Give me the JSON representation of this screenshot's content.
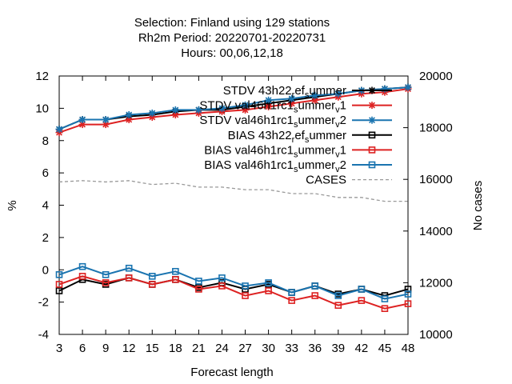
{
  "chart_data": {
    "type": "line",
    "title_lines": [
      "Selection: Finland using   129 stations",
      "Rh2m   Period: 20220701-20220731",
      "Hours:  00,06,12,18"
    ],
    "xlabel": "Forecast length",
    "ylabel": "%",
    "y2label": "No cases",
    "x": [
      3,
      6,
      9,
      12,
      15,
      18,
      21,
      24,
      27,
      30,
      33,
      36,
      39,
      42,
      45,
      48
    ],
    "xlim": [
      3,
      48
    ],
    "ylim": [
      -4,
      12
    ],
    "y2lim": [
      10000,
      20000
    ],
    "xticks": [
      "3",
      "6",
      "9",
      "12",
      "15",
      "18",
      "21",
      "24",
      "27",
      "30",
      "33",
      "36",
      "39",
      "42",
      "45",
      "48"
    ],
    "yticks": [
      "-4",
      "-2",
      "0",
      "2",
      "4",
      "6",
      "8",
      "10",
      "12"
    ],
    "y2ticks": [
      "10000",
      "12000",
      "14000",
      "16000",
      "18000",
      "20000"
    ],
    "legend_position": "top-right",
    "grid": false,
    "series": [
      {
        "name": "STDV 43h22_ref_summer",
        "label_main": "STDV 43h22",
        "label_sub": [
          "r",
          "ef",
          "s",
          "ummer"
        ],
        "axis": "y1",
        "marker": "asterisk",
        "color": "#000000",
        "dash": "solid",
        "values": [
          8.7,
          9.3,
          9.3,
          9.5,
          9.6,
          9.8,
          9.9,
          9.9,
          10.1,
          10.3,
          10.5,
          10.7,
          10.9,
          11.1,
          11.2,
          11.3
        ]
      },
      {
        "name": "STDV val46h1rc1_summer_v1",
        "label_main": "STDV val46h1rc1",
        "label_sub": [
          "s",
          "ummer",
          "v",
          "1"
        ],
        "axis": "y1",
        "marker": "asterisk",
        "color": "#dd2222",
        "dash": "solid",
        "values": [
          8.5,
          9.0,
          9.0,
          9.3,
          9.45,
          9.6,
          9.7,
          9.8,
          9.9,
          10.1,
          10.3,
          10.5,
          10.7,
          10.9,
          11.0,
          11.2
        ]
      },
      {
        "name": "STDV val46h1rc1_summer_v2",
        "label_main": "STDV val46h1rc1",
        "label_sub": [
          "s",
          "ummer",
          "v",
          "2"
        ],
        "axis": "y1",
        "marker": "asterisk",
        "color": "#1a74b0",
        "dash": "solid",
        "values": [
          8.7,
          9.3,
          9.3,
          9.6,
          9.7,
          9.9,
          9.9,
          10.0,
          10.2,
          10.5,
          10.6,
          10.8,
          10.9,
          11.1,
          11.2,
          11.3
        ]
      },
      {
        "name": "BIAS 43h22_ref_summer",
        "label_main": "BIAS 43h22",
        "label_sub": [
          "r",
          "ef",
          "s",
          "ummer"
        ],
        "axis": "y1",
        "marker": "square",
        "color": "#000000",
        "dash": "solid",
        "values": [
          -1.3,
          -0.6,
          -0.9,
          -0.5,
          -0.9,
          -0.6,
          -1.1,
          -0.8,
          -1.2,
          -0.9,
          -1.4,
          -1.0,
          -1.5,
          -1.2,
          -1.6,
          -1.2
        ]
      },
      {
        "name": "BIAS val46h1rc1_summer_v1",
        "label_main": "BIAS val46h1rc1",
        "label_sub": [
          "s",
          "ummer",
          "v",
          "1"
        ],
        "axis": "y1",
        "marker": "square",
        "color": "#dd2222",
        "dash": "solid",
        "values": [
          -0.9,
          -0.4,
          -0.8,
          -0.5,
          -0.9,
          -0.6,
          -1.2,
          -1.0,
          -1.6,
          -1.3,
          -1.9,
          -1.6,
          -2.2,
          -1.9,
          -2.4,
          -2.1
        ]
      },
      {
        "name": "BIAS val46h1rc1_summer_v2",
        "label_main": "BIAS val46h1rc1",
        "label_sub": [
          "s",
          "ummer",
          "v",
          "2"
        ],
        "axis": "y1",
        "marker": "square",
        "color": "#1a74b0",
        "dash": "solid",
        "values": [
          -0.3,
          0.2,
          -0.3,
          0.1,
          -0.4,
          -0.1,
          -0.7,
          -0.5,
          -1.0,
          -0.8,
          -1.4,
          -1.0,
          -1.6,
          -1.2,
          -1.8,
          -1.5
        ]
      },
      {
        "name": "CASES",
        "label_main": "CASES",
        "label_sub": [],
        "axis": "y2",
        "marker": "none",
        "color": "#999999",
        "dash": "dashed",
        "values": [
          15900,
          15950,
          15900,
          15950,
          15800,
          15850,
          15700,
          15700,
          15600,
          15600,
          15450,
          15450,
          15300,
          15300,
          15150,
          15150
        ]
      }
    ]
  }
}
